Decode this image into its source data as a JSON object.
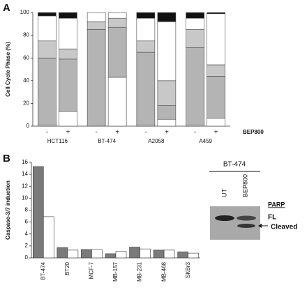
{
  "panel_labels": [
    "A",
    "B"
  ],
  "chart_data": [
    {
      "type": "bar",
      "stacked": true,
      "y_label": "Cell Cycle Phase (%)",
      "categories": [
        "-",
        "+",
        "-",
        "+",
        "-",
        "+",
        "-",
        "+"
      ],
      "groups": [
        "HCT116",
        "BT-474",
        "A2058",
        "A459"
      ],
      "x_label": "BEP800",
      "ylim": [
        0,
        100
      ],
      "yticks": [
        0,
        20,
        40,
        60,
        80,
        100
      ],
      "series": [
        {
          "color": "#ffffff",
          "values": [
            1,
            13,
            0,
            43,
            1,
            6,
            1,
            7
          ]
        },
        {
          "color": "#b4b4b4",
          "values": [
            59,
            46,
            85,
            44,
            64,
            12,
            68,
            37
          ]
        },
        {
          "color": "#c8c8c8",
          "values": [
            15,
            9,
            7,
            8,
            10,
            22,
            16,
            10
          ]
        },
        {
          "color": "#ffffff",
          "values": [
            22,
            27,
            8,
            5,
            20,
            52,
            10,
            45
          ]
        },
        {
          "color": "#111111",
          "values": [
            3,
            5,
            0,
            0,
            5,
            8,
            5,
            1
          ]
        }
      ]
    },
    {
      "type": "bar",
      "stacked": false,
      "y_label": "Caspase-3/7 induction",
      "categories": [
        "BT-474",
        "BT20",
        "MCF-7",
        "MB-157",
        "MB-231",
        "MB-468",
        "SKBr3"
      ],
      "ylim": [
        0,
        16
      ],
      "yticks": [
        0,
        2,
        4,
        6,
        8,
        10,
        12,
        14,
        16
      ],
      "series": [
        {
          "color": "#7a7a7a",
          "values": [
            15.3,
            1.7,
            1.4,
            0.7,
            1.8,
            1.3,
            1.0
          ]
        },
        {
          "color": "#ffffff",
          "values": [
            6.9,
            1.3,
            1.4,
            1.1,
            1.5,
            1.3,
            0.8
          ]
        }
      ]
    }
  ],
  "blot": {
    "title": "BT-474",
    "lanes": [
      "UT",
      "BEP800"
    ],
    "protein": "PARP",
    "bands": [
      "FL",
      "Cleaved"
    ]
  }
}
